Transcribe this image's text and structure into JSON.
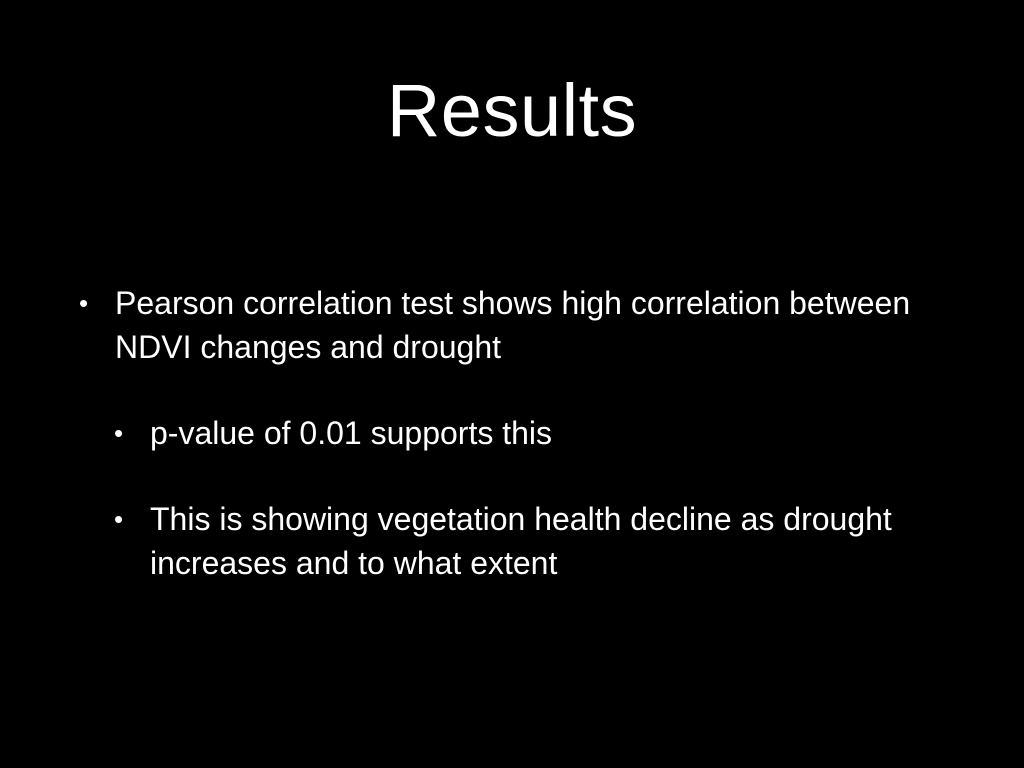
{
  "slide": {
    "title": "Results",
    "bullets": [
      {
        "text": "Pearson correlation test shows high correlation between NDVI changes and drought",
        "level": 1
      },
      {
        "text": "p-value of 0.01 supports this",
        "level": 2
      },
      {
        "text": "This is showing vegetation health decline as drought increases and to what extent",
        "level": 2
      }
    ],
    "bullet_symbol": "•",
    "colors": {
      "background": "#000000",
      "text": "#ffffff"
    }
  }
}
